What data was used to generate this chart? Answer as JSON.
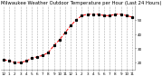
{
  "title": "Milwaukee Weather Outdoor Temperature per Hour (Last 24 Hours)",
  "x_values": [
    0,
    1,
    2,
    3,
    4,
    5,
    6,
    7,
    8,
    9,
    10,
    11,
    12,
    13,
    14,
    15,
    16,
    17,
    18,
    19,
    20,
    21,
    22,
    23
  ],
  "y_values": [
    22,
    21,
    20,
    20,
    21,
    23,
    24,
    25,
    27,
    32,
    36,
    41,
    46,
    50,
    53,
    54,
    54,
    54,
    53,
    53,
    54,
    54,
    53,
    52
  ],
  "line_color": "#ff0000",
  "marker_color": "#000000",
  "bg_color": "#ffffff",
  "plot_bg_color": "#ffffff",
  "grid_color": "#aaaaaa",
  "text_color": "#000000",
  "title_fontsize": 3.8,
  "tick_fontsize": 3.0,
  "ylim": [
    15,
    60
  ],
  "yticks": [
    20,
    30,
    40,
    50
  ],
  "xtick_labels": [
    "12",
    "1",
    "2",
    "3",
    "4",
    "5",
    "6",
    "7",
    "8",
    "9",
    "10",
    "11",
    "12",
    "1",
    "2",
    "3",
    "4",
    "5",
    "6",
    "7",
    "8",
    "9",
    "10",
    "11"
  ]
}
